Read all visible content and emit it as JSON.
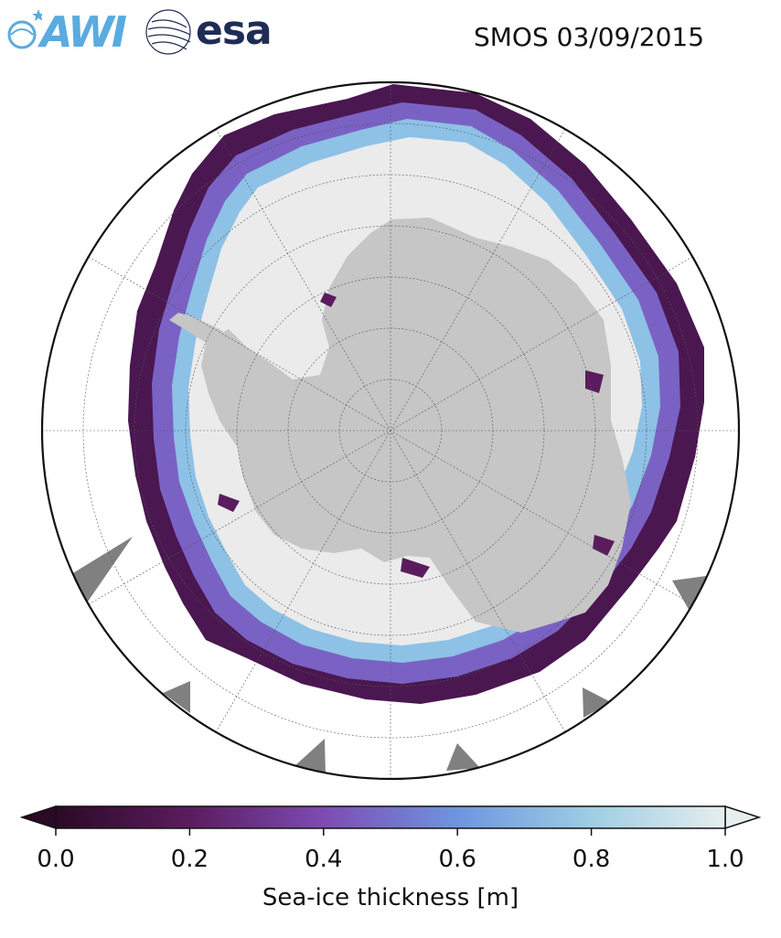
{
  "header": {
    "title": "SMOS 03/09/2015",
    "logos": [
      {
        "name": "awi-logo",
        "text": "AWI"
      },
      {
        "name": "esa-logo",
        "text": "esa"
      }
    ]
  },
  "map": {
    "projection": "south-polar-stereographic",
    "land_color": "#c6c6c6",
    "thick_ice_color": "#ebebeb",
    "ocean_color": "#ffffff",
    "missing_color": "#808080",
    "gridlines": true
  },
  "colorbar": {
    "label": "Sea-ice thickness [m]",
    "ticks": [
      "0.0",
      "0.2",
      "0.4",
      "0.6",
      "0.8",
      "1.0"
    ],
    "tick_values": [
      0.0,
      0.2,
      0.4,
      0.6,
      0.8,
      1.0
    ],
    "min": 0.0,
    "max": 1.0,
    "extend": "both",
    "colors": [
      "#2a0a24",
      "#5b1c5e",
      "#7d4bb4",
      "#6e95e0",
      "#9fcde3",
      "#e6eeee"
    ]
  }
}
